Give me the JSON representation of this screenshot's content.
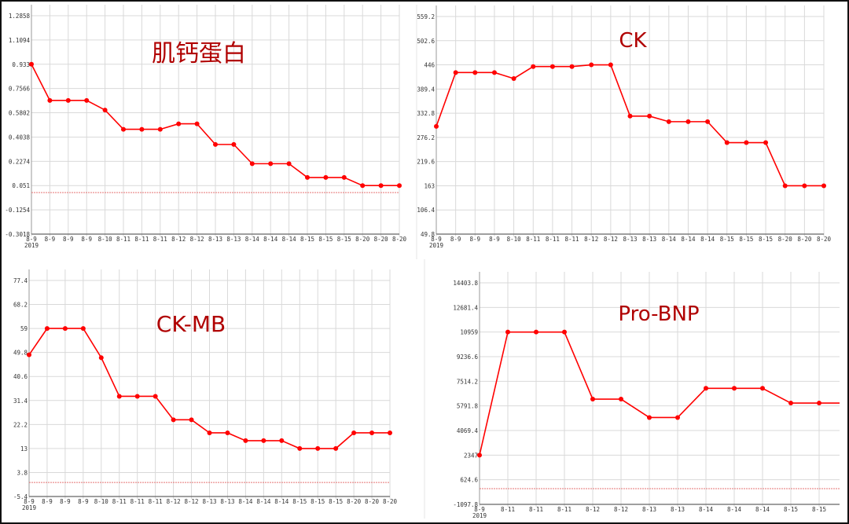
{
  "chart_data": [
    {
      "type": "line",
      "title": "肌钙蛋白",
      "categories": [
        "8-9",
        "8-9",
        "8-9",
        "8-9",
        "8-10",
        "8-11",
        "8-11",
        "8-11",
        "8-12",
        "8-12",
        "8-13",
        "8-13",
        "8-14",
        "8-14",
        "8-14",
        "8-15",
        "8-15",
        "8-15",
        "8-20",
        "8-20",
        "8-20"
      ],
      "year_label": "2019",
      "values": [
        0.933,
        0.67,
        0.67,
        0.67,
        0.6,
        0.46,
        0.46,
        0.46,
        0.5,
        0.5,
        0.35,
        0.35,
        0.21,
        0.21,
        0.21,
        0.11,
        0.11,
        0.11,
        0.051,
        0.051,
        0.051
      ],
      "y_ticks": [
        "-0.3018",
        "-0.1254",
        "0.051",
        "0.2274",
        "0.4038",
        "0.5802",
        "0.7566",
        "0.933",
        "1.1094",
        "1.2858"
      ],
      "ylim": [
        -0.3018,
        1.2858
      ],
      "reference_line": 0,
      "grid": true,
      "line_color": "#ff0000",
      "title_color": "#b00000"
    },
    {
      "type": "line",
      "title": "CK",
      "categories": [
        "8-9",
        "8-9",
        "8-9",
        "8-9",
        "8-10",
        "8-11",
        "8-11",
        "8-11",
        "8-12",
        "8-12",
        "8-13",
        "8-13",
        "8-14",
        "8-14",
        "8-14",
        "8-15",
        "8-15",
        "8-15",
        "8-20",
        "8-20",
        "8-20"
      ],
      "year_label": "2019",
      "values": [
        302,
        428,
        428,
        428,
        414,
        442,
        442,
        442,
        446,
        446,
        326,
        326,
        313,
        313,
        313,
        264,
        264,
        264,
        163,
        163,
        163
      ],
      "y_ticks": [
        "49.8",
        "106.4",
        "163",
        "219.6",
        "276.2",
        "332.8",
        "389.4",
        "446",
        "502.6",
        "559.2"
      ],
      "ylim": [
        49.8,
        559.2
      ],
      "grid": true,
      "line_color": "#ff0000",
      "title_color": "#b00000"
    },
    {
      "type": "line",
      "title": "CK-MB",
      "categories": [
        "8-9",
        "8-9",
        "8-9",
        "8-9",
        "8-10",
        "8-11",
        "8-11",
        "8-11",
        "8-12",
        "8-12",
        "8-13",
        "8-13",
        "8-14",
        "8-14",
        "8-14",
        "8-15",
        "8-15",
        "8-15",
        "8-20",
        "8-20",
        "8-20"
      ],
      "year_label": "2019",
      "values": [
        48.9,
        59,
        59,
        59,
        47.8,
        33,
        33,
        33,
        24,
        24,
        19,
        19,
        16,
        16,
        16,
        13,
        13,
        13,
        19,
        19,
        19
      ],
      "y_ticks": [
        "-5.4",
        "3.8",
        "13",
        "22.2",
        "31.4",
        "40.6",
        "49.8",
        "59",
        "68.2",
        "77.4"
      ],
      "ylim": [
        -5.4,
        77.4
      ],
      "reference_line": 0,
      "grid": true,
      "line_color": "#ff0000",
      "title_color": "#b00000"
    },
    {
      "type": "line",
      "title": "Pro-BNP",
      "categories": [
        "8-9",
        "8-11",
        "8-11",
        "8-11",
        "8-12",
        "8-12",
        "8-13",
        "8-13",
        "8-14",
        "8-14",
        "8-14",
        "8-15",
        "8-15"
      ],
      "year_label": "2019",
      "values": [
        2347,
        10959,
        10959,
        10959,
        6267,
        6267,
        4979,
        4979,
        7021,
        7021,
        7021,
        5990,
        5990
      ],
      "y_ticks": [
        "-1097.8",
        "624.6",
        "2347",
        "4069.4",
        "5791.8",
        "7514.2",
        "9236.6",
        "10959",
        "12681.4",
        "14403.8"
      ],
      "ylim": [
        -1097.8,
        14403.8
      ],
      "reference_line": 0,
      "series_continues_right": true,
      "grid": true,
      "line_color": "#ff0000",
      "title_color": "#b00000"
    }
  ]
}
